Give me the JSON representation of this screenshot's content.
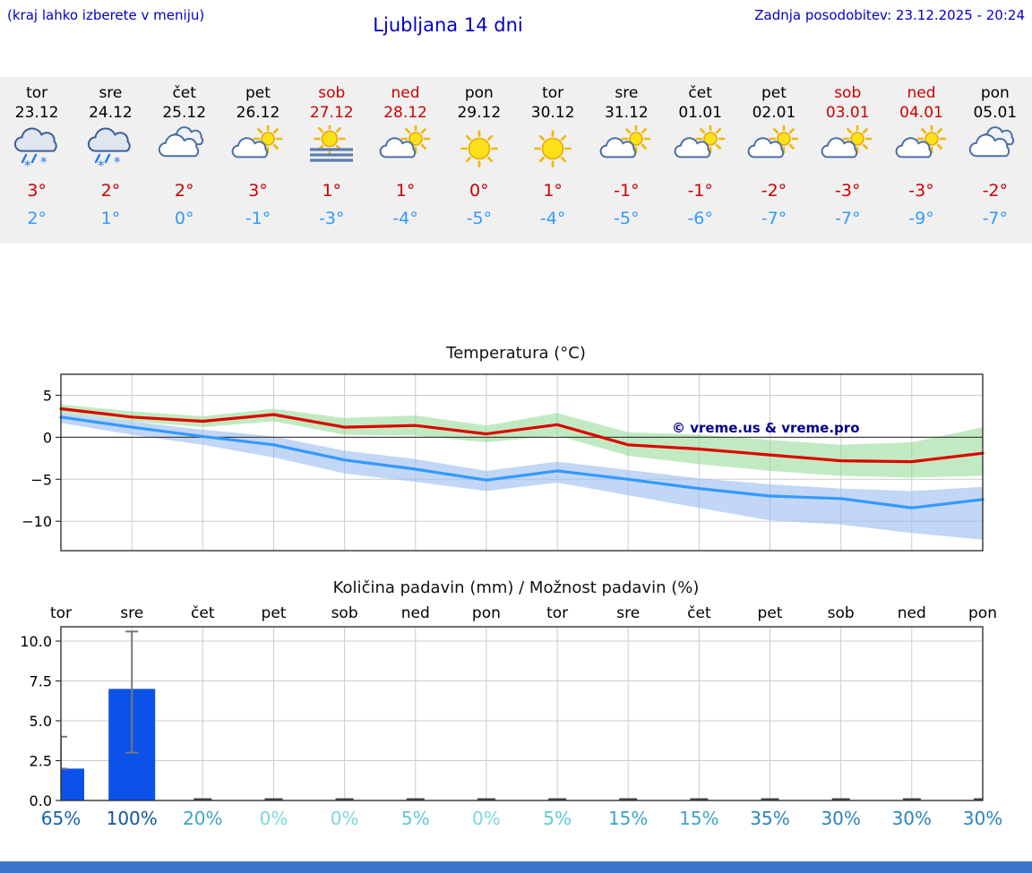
{
  "header": {
    "menu_hint": "(kraj lahko izberete v meniju)",
    "title": "Ljubljana 14 dni",
    "last_update": "Zadnja posodobitev: 23.12.2025 - 20:24"
  },
  "colors": {
    "header_blue": "#0000cc",
    "weekend_red": "#cc0000",
    "tmax_red": "#cc0000",
    "tmin_blue": "#3399ff",
    "day_strip_bg": "#f0f0f0",
    "bar_blue": "#0d52e8",
    "footer_blue": "#3b76cc",
    "watermark_blue": "#00008b"
  },
  "days": [
    {
      "name": "tor",
      "date": "23.12",
      "weekend": false,
      "icon": "rain",
      "tmax": "3°",
      "tmin": "2°"
    },
    {
      "name": "sre",
      "date": "24.12",
      "weekend": false,
      "icon": "rain",
      "tmax": "2°",
      "tmin": "1°"
    },
    {
      "name": "čet",
      "date": "25.12",
      "weekend": false,
      "icon": "cloudy",
      "tmax": "2°",
      "tmin": "0°"
    },
    {
      "name": "pet",
      "date": "26.12",
      "weekend": false,
      "icon": "partly",
      "tmax": "3°",
      "tmin": "-1°"
    },
    {
      "name": "sob",
      "date": "27.12",
      "weekend": true,
      "icon": "fog",
      "tmax": "1°",
      "tmin": "-3°"
    },
    {
      "name": "ned",
      "date": "28.12",
      "weekend": true,
      "icon": "partly",
      "tmax": "1°",
      "tmin": "-4°"
    },
    {
      "name": "pon",
      "date": "29.12",
      "weekend": false,
      "icon": "sunny",
      "tmax": "0°",
      "tmin": "-5°"
    },
    {
      "name": "tor",
      "date": "30.12",
      "weekend": false,
      "icon": "sunny",
      "tmax": "1°",
      "tmin": "-4°"
    },
    {
      "name": "sre",
      "date": "31.12",
      "weekend": false,
      "icon": "partly",
      "tmax": "-1°",
      "tmin": "-5°"
    },
    {
      "name": "čet",
      "date": "01.01",
      "weekend": false,
      "icon": "partly",
      "tmax": "-1°",
      "tmin": "-6°"
    },
    {
      "name": "pet",
      "date": "02.01",
      "weekend": false,
      "icon": "partly",
      "tmax": "-2°",
      "tmin": "-7°"
    },
    {
      "name": "sob",
      "date": "03.01",
      "weekend": true,
      "icon": "partly",
      "tmax": "-3°",
      "tmin": "-7°"
    },
    {
      "name": "ned",
      "date": "04.01",
      "weekend": true,
      "icon": "partly",
      "tmax": "-3°",
      "tmin": "-9°"
    },
    {
      "name": "pon",
      "date": "05.01",
      "weekend": false,
      "icon": "cloudy",
      "tmax": "-2°",
      "tmin": "-7°"
    }
  ],
  "chart_data": [
    {
      "type": "line",
      "title": "Temperatura (°C)",
      "xlabel": "",
      "ylabel": "",
      "ylim": [
        -13.5,
        7.5
      ],
      "yticks": [
        5,
        0,
        -5,
        -10
      ],
      "grid": true,
      "watermark": "© vreme.us & vreme.pro",
      "x_days": [
        "tor",
        "sre",
        "čet",
        "pet",
        "sob",
        "ned",
        "pon",
        "tor",
        "sre",
        "čet",
        "pet",
        "sob",
        "ned",
        "pon"
      ],
      "series": [
        {
          "name": "temperatura max",
          "color": "#dd0000",
          "values": [
            3.4,
            2.4,
            1.9,
            2.7,
            1.2,
            1.4,
            0.4,
            1.5,
            -0.9,
            -1.4,
            -2.1,
            -2.8,
            -2.9,
            -1.9
          ]
        },
        {
          "name": "temperatura min",
          "color": "#3399ff",
          "values": [
            2.4,
            1.2,
            0.1,
            -0.9,
            -2.7,
            -3.8,
            -5.1,
            -4.0,
            -5.0,
            -6.1,
            -7.0,
            -7.3,
            -8.4,
            -7.4
          ]
        }
      ],
      "bands": [
        {
          "name": "razpon-max",
          "color": "#90d890",
          "opacity": 0.55,
          "upper": [
            3.9,
            3.1,
            2.5,
            3.4,
            2.3,
            2.6,
            1.4,
            2.9,
            0.6,
            0.3,
            -0.3,
            -0.9,
            -0.6,
            1.2
          ],
          "lower": [
            2.9,
            1.9,
            1.2,
            1.9,
            0.3,
            0.2,
            -0.6,
            0.2,
            -2.2,
            -3.2,
            -4.0,
            -4.6,
            -4.8,
            -4.6
          ]
        },
        {
          "name": "razpon-min",
          "color": "#99bbee",
          "opacity": 0.6,
          "upper": [
            2.9,
            1.9,
            0.9,
            0.1,
            -1.6,
            -2.6,
            -4.0,
            -2.9,
            -3.9,
            -4.9,
            -5.6,
            -6.1,
            -6.4,
            -5.9
          ],
          "lower": [
            1.7,
            0.3,
            -0.9,
            -2.4,
            -4.3,
            -5.3,
            -6.4,
            -5.4,
            -6.9,
            -8.4,
            -9.9,
            -10.4,
            -11.4,
            -12.2
          ]
        }
      ]
    },
    {
      "type": "bar",
      "title": "Količina padavin (mm) / Možnost padavin (%)",
      "categories": [
        "tor",
        "sre",
        "čet",
        "pet",
        "sob",
        "ned",
        "pon",
        "tor",
        "sre",
        "čet",
        "pet",
        "sob",
        "ned",
        "pon"
      ],
      "ylim": [
        0,
        10.9
      ],
      "yticks": [
        0.0,
        2.5,
        5.0,
        7.5,
        10.0
      ],
      "values": [
        2.0,
        7.0,
        0,
        0,
        0,
        0,
        0,
        0,
        0,
        0,
        0,
        0,
        0,
        0
      ],
      "whiskers": [
        {
          "low": 2.0,
          "high": 4.0
        },
        {
          "low": 3.0,
          "high": 10.6
        },
        null,
        null,
        null,
        null,
        null,
        null,
        null,
        null,
        null,
        null,
        null,
        null
      ],
      "probabilities": [
        {
          "label": "65%",
          "color": "#1863ae"
        },
        {
          "label": "100%",
          "color": "#11559f"
        },
        {
          "label": "20%",
          "color": "#3ea3cb"
        },
        {
          "label": "0%",
          "color": "#7cd6dc"
        },
        {
          "label": "0%",
          "color": "#7cd6dc"
        },
        {
          "label": "5%",
          "color": "#5ec9d6"
        },
        {
          "label": "0%",
          "color": "#7cd6dc"
        },
        {
          "label": "5%",
          "color": "#5ec9d6"
        },
        {
          "label": "15%",
          "color": "#3ea3cb"
        },
        {
          "label": "15%",
          "color": "#3ea3cb"
        },
        {
          "label": "35%",
          "color": "#2b83c0"
        },
        {
          "label": "30%",
          "color": "#2b83c0"
        },
        {
          "label": "30%",
          "color": "#2b83c0"
        },
        {
          "label": "30%",
          "color": "#2b83c0"
        }
      ]
    }
  ]
}
